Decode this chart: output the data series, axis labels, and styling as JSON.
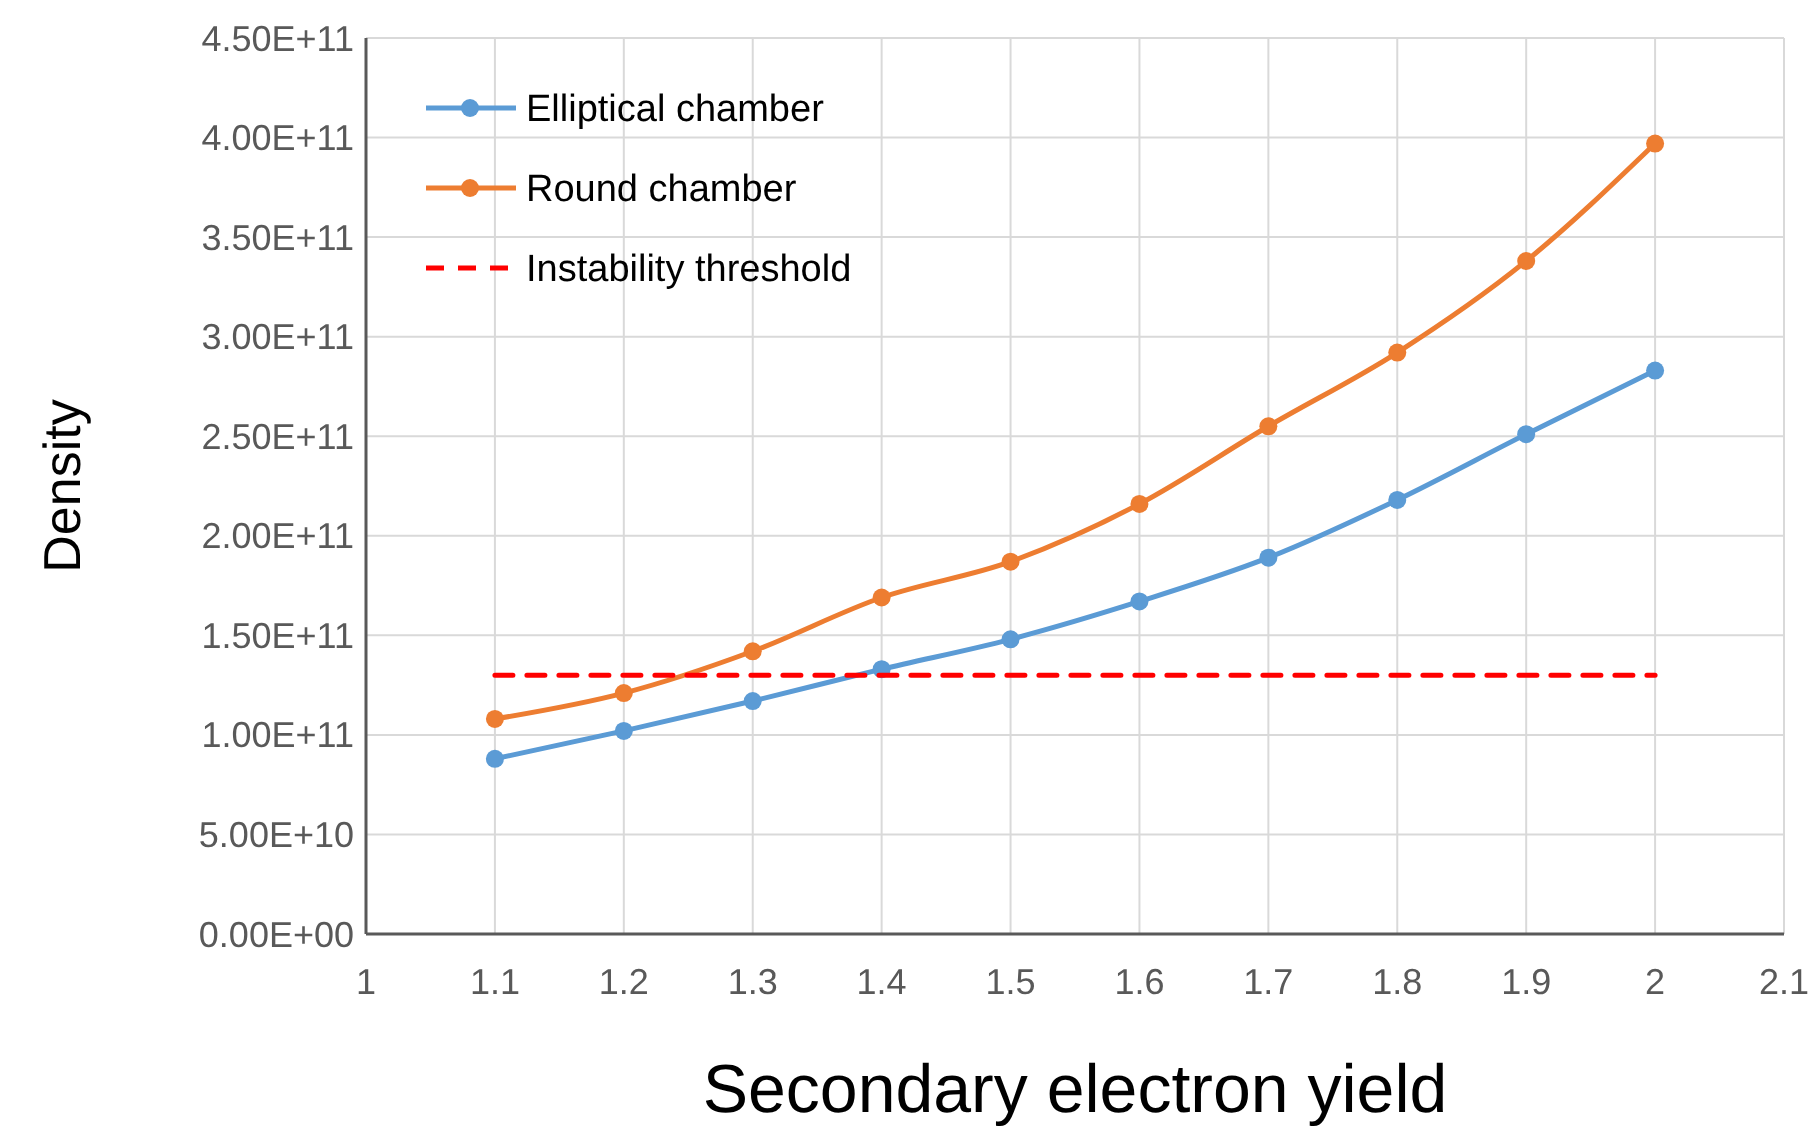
{
  "chart_data": {
    "type": "line",
    "xlabel": "Secondary electron yield",
    "ylabel": "Density",
    "x": [
      1.1,
      1.2,
      1.3,
      1.4,
      1.5,
      1.6,
      1.7,
      1.8,
      1.9,
      2
    ],
    "series": [
      {
        "name": "Elliptical chamber",
        "color": "#5b9bd5",
        "values": [
          88000000000.0,
          102000000000.0,
          117000000000.0,
          133000000000.0,
          148000000000.0,
          167000000000.0,
          189000000000.0,
          218000000000.0,
          251000000000.0,
          283000000000.0
        ],
        "marker": "circle",
        "line_style": "solid"
      },
      {
        "name": "Round chamber",
        "color": "#ed7d31",
        "values": [
          108000000000.0,
          121000000000.0,
          142000000000.0,
          169000000000.0,
          187000000000.0,
          216000000000.0,
          255000000000.0,
          292000000000.0,
          338000000000.0,
          397000000000.0
        ],
        "marker": "circle",
        "line_style": "solid"
      },
      {
        "name": "Instability threshold",
        "color": "#ff0000",
        "values": [
          130000000000.0,
          130000000000.0,
          130000000000.0,
          130000000000.0,
          130000000000.0,
          130000000000.0,
          130000000000.0,
          130000000000.0,
          130000000000.0,
          130000000000.0
        ],
        "marker": "none",
        "line_style": "dashed"
      }
    ],
    "xlim": [
      1,
      2.1
    ],
    "xticks": [
      1,
      1.1,
      1.2,
      1.3,
      1.4,
      1.5,
      1.6,
      1.7,
      1.8,
      1.9,
      2,
      2.1
    ],
    "ylim": [
      0,
      450000000000.0
    ],
    "yticks": [
      {
        "value": 0,
        "label": "0.00E+00"
      },
      {
        "value": 50000000000.0,
        "label": "5.00E+10"
      },
      {
        "value": 100000000000.0,
        "label": "1.00E+11"
      },
      {
        "value": 150000000000.0,
        "label": "1.50E+11"
      },
      {
        "value": 200000000000.0,
        "label": "2.00E+11"
      },
      {
        "value": 250000000000.0,
        "label": "2.50E+11"
      },
      {
        "value": 300000000000.0,
        "label": "3.00E+11"
      },
      {
        "value": 350000000000.0,
        "label": "3.50E+11"
      },
      {
        "value": 400000000000.0,
        "label": "4.00E+11"
      },
      {
        "value": 450000000000.0,
        "label": "4.50E+11"
      }
    ],
    "grid": true,
    "legend": "top left"
  }
}
